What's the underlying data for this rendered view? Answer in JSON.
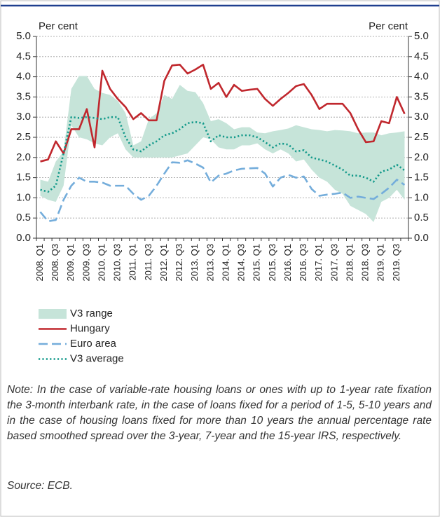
{
  "chart_data": {
    "type": "line",
    "ylabel": "Per cent",
    "y2label": "Per cent",
    "categories": [
      "2008. Q1",
      null,
      "2008. Q3",
      null,
      "2009. Q1",
      null,
      "2009. Q3",
      null,
      "2010. Q1",
      null,
      "2010. Q3",
      null,
      "2011. Q1",
      null,
      "2011. Q3",
      null,
      "2012. Q1",
      null,
      "2012. Q3",
      null,
      "2013. Q1",
      null,
      "2013. Q3",
      null,
      "2014. Q1",
      null,
      "2014. Q3",
      null,
      "2015. Q1",
      null,
      "2015. Q3",
      null,
      "2016. Q1",
      null,
      "2016. Q3",
      null,
      "2017. Q1",
      null,
      "2017. Q3",
      null,
      "2018. Q1",
      null,
      "2018. Q3",
      null,
      "2019. Q1",
      null,
      "2019. Q3",
      null
    ],
    "series": [
      {
        "name": "V3 range",
        "color": "#c6e4d9",
        "style": "band",
        "high": [
          1.45,
          1.4,
          1.9,
          2.15,
          3.7,
          4.02,
          4.02,
          3.7,
          3.6,
          3.55,
          3.4,
          3.1,
          2.3,
          2.4,
          2.95,
          3.1,
          3.55,
          3.45,
          3.8,
          3.65,
          3.62,
          3.35,
          2.9,
          2.95,
          2.85,
          2.7,
          2.75,
          2.75,
          2.62,
          2.6,
          2.65,
          2.68,
          2.72,
          2.8,
          2.75,
          2.7,
          2.68,
          2.65,
          2.68,
          2.67,
          2.65,
          2.6,
          2.62,
          2.62,
          2.55,
          2.6,
          2.62,
          2.65
        ],
        "low": [
          1.05,
          0.95,
          0.9,
          1.3,
          2.8,
          2.5,
          2.45,
          2.35,
          2.3,
          2.5,
          2.6,
          2.2,
          2.0,
          2.0,
          2.0,
          2.0,
          2.0,
          2.0,
          2.05,
          2.1,
          2.3,
          2.5,
          2.45,
          2.25,
          2.2,
          2.2,
          2.3,
          2.3,
          2.35,
          2.2,
          2.1,
          2.2,
          2.1,
          1.9,
          1.95,
          1.7,
          1.5,
          1.4,
          1.2,
          1.1,
          0.8,
          0.7,
          0.6,
          0.4,
          0.9,
          1.0,
          1.2,
          0.95
        ]
      },
      {
        "name": "Hungary",
        "color": "#c0272d",
        "style": "solid",
        "values": [
          1.9,
          1.95,
          2.4,
          2.1,
          2.7,
          2.7,
          3.2,
          2.25,
          4.15,
          3.7,
          3.45,
          3.25,
          2.95,
          3.1,
          2.92,
          2.92,
          3.9,
          4.28,
          4.3,
          4.08,
          4.18,
          4.3,
          3.7,
          3.85,
          3.5,
          3.8,
          3.65,
          3.68,
          3.7,
          3.45,
          3.28,
          3.45,
          3.6,
          3.77,
          3.82,
          3.55,
          3.2,
          3.33,
          3.33,
          3.33,
          3.1,
          2.7,
          2.38,
          2.4,
          2.9,
          2.85,
          3.5,
          3.08
        ]
      },
      {
        "name": "Euro area",
        "color": "#74addb",
        "style": "dashed",
        "values": [
          0.65,
          0.42,
          0.45,
          0.95,
          1.3,
          1.5,
          1.4,
          1.4,
          1.38,
          1.3,
          1.3,
          1.3,
          1.1,
          0.95,
          1.05,
          1.3,
          1.6,
          1.88,
          1.87,
          1.93,
          1.85,
          1.75,
          1.38,
          1.55,
          1.6,
          1.68,
          1.72,
          1.73,
          1.74,
          1.6,
          1.28,
          1.5,
          1.57,
          1.5,
          1.53,
          1.22,
          1.05,
          1.08,
          1.1,
          1.13,
          1.0,
          1.03,
          1.0,
          0.97,
          1.1,
          1.25,
          1.45,
          1.32
        ]
      },
      {
        "name": "V3 average",
        "color": "#12998a",
        "style": "dotted",
        "values": [
          1.2,
          1.15,
          1.3,
          2.1,
          3.0,
          2.98,
          3.0,
          2.98,
          2.95,
          3.0,
          3.0,
          2.5,
          2.2,
          2.15,
          2.3,
          2.4,
          2.55,
          2.6,
          2.7,
          2.85,
          2.88,
          2.85,
          2.4,
          2.55,
          2.5,
          2.5,
          2.55,
          2.55,
          2.5,
          2.38,
          2.25,
          2.35,
          2.32,
          2.15,
          2.18,
          2.0,
          1.95,
          1.9,
          1.8,
          1.7,
          1.55,
          1.55,
          1.5,
          1.4,
          1.65,
          1.7,
          1.82,
          1.68
        ]
      }
    ],
    "ylim": [
      0,
      5
    ],
    "yticks": [
      {
        "value": 0,
        "label": "0.0"
      },
      0.5,
      {
        "value": 1,
        "label": "1.0"
      },
      1.5,
      {
        "value": 2,
        "label": "2.0"
      },
      2.5,
      {
        "value": 3,
        "label": "3.0"
      },
      3.5,
      {
        "value": 4,
        "label": "4.0"
      },
      4.5,
      {
        "value": 5,
        "label": "5.0"
      }
    ],
    "y2lim": [
      0,
      5
    ],
    "y2ticks": [
      {
        "value": 0,
        "label": "0.0"
      },
      0.5,
      {
        "value": 1,
        "label": "1.0"
      },
      1.5,
      {
        "value": 2,
        "label": "2.0"
      },
      2.5,
      {
        "value": 3,
        "label": "3.0"
      },
      3.5,
      {
        "value": 4,
        "label": "4.0"
      },
      4.5,
      {
        "value": 5,
        "label": "5.0"
      }
    ],
    "grid": true,
    "note": "Note: In the case of variable-rate housing loans or ones with up to 1-year rate fixation the 3-month interbank rate, in the case of loans fixed for a period of 1-5, 5-10 years and in the case of housing loans fixed for more than 10 years the annual percentage rate based smoothed spread over the 3-year, 7-year and the 15-year IRS, respectively.",
    "source": "Source: ECB."
  }
}
